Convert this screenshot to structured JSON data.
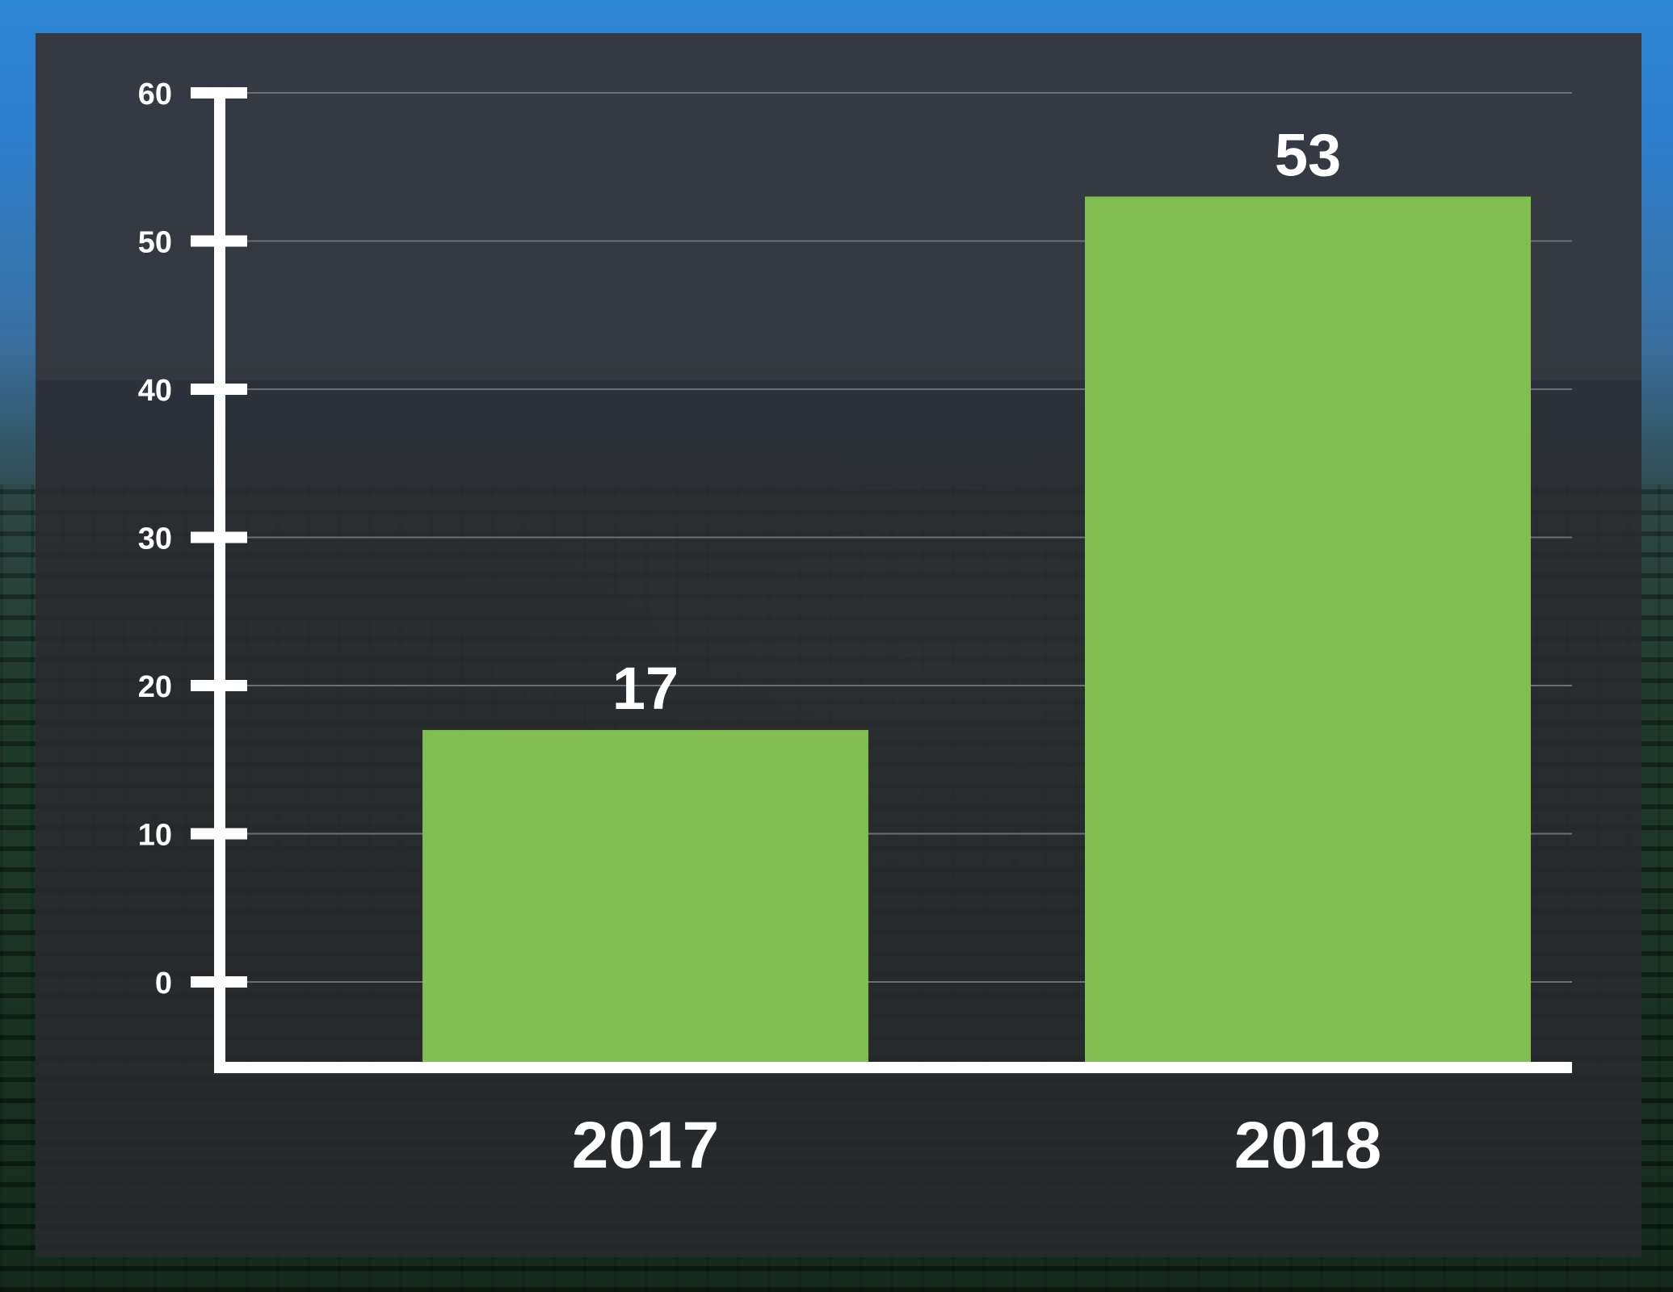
{
  "chart_data": {
    "type": "bar",
    "categories": [
      "2017",
      "2018"
    ],
    "values": [
      17,
      53
    ],
    "data_labels": [
      "17",
      "53"
    ],
    "title": "",
    "xlabel": "",
    "ylabel": "",
    "ylim": [
      0,
      60
    ],
    "y_ticks": [
      0,
      10,
      20,
      30,
      40,
      50,
      60
    ],
    "grid": true,
    "legend": "none",
    "colors": {
      "bar": "#82bd51",
      "axis": "#ffffff",
      "grid": "#6c6f74",
      "panel": "#2a2a2e"
    }
  }
}
